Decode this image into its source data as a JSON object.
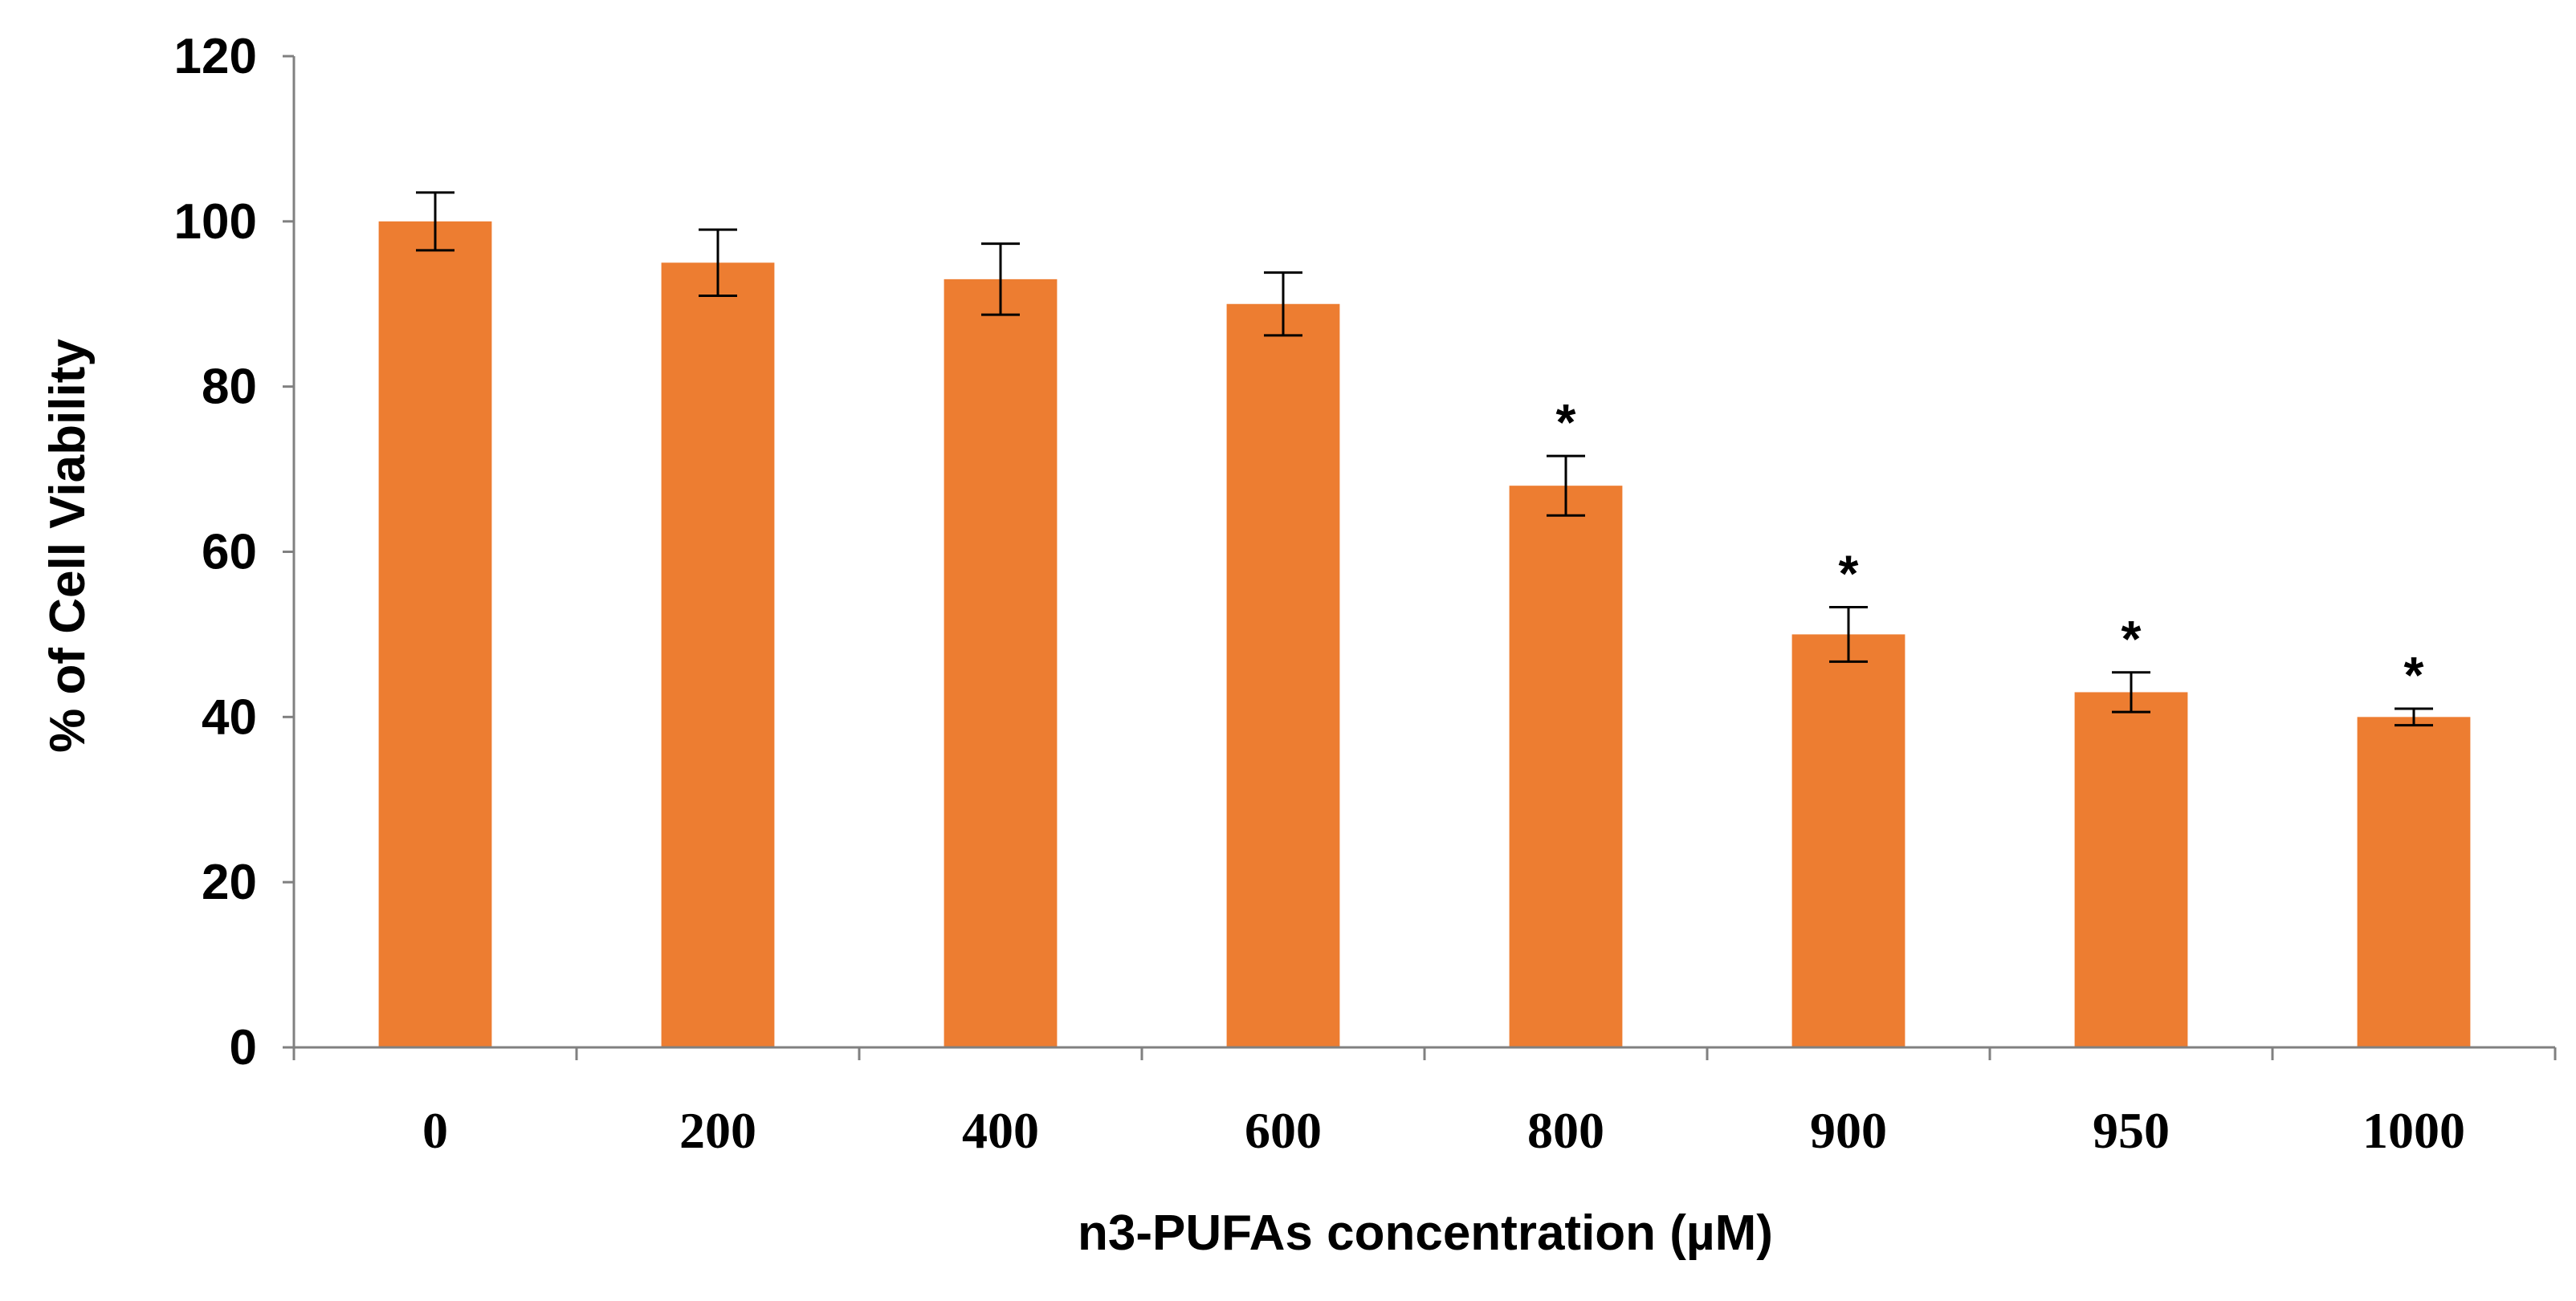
{
  "chart_data": {
    "type": "bar",
    "title": "",
    "xlabel": "n3-PUFAs concentration (µM)",
    "ylabel": "% of Cell Viability",
    "categories": [
      "0",
      "200",
      "400",
      "600",
      "800",
      "900",
      "950",
      "1000"
    ],
    "values": [
      100,
      95,
      93,
      90,
      68,
      50,
      43,
      40
    ],
    "errors": [
      3.5,
      4,
      4.3,
      3.8,
      3.6,
      3.3,
      2.4,
      1
    ],
    "significance": [
      "",
      "",
      "",
      "",
      "*",
      "*",
      "*",
      "*"
    ],
    "ylim": [
      0,
      120
    ],
    "yticks": [
      0,
      20,
      40,
      60,
      80,
      100,
      120
    ],
    "grid": false,
    "bar_color": "#ED7D31"
  }
}
